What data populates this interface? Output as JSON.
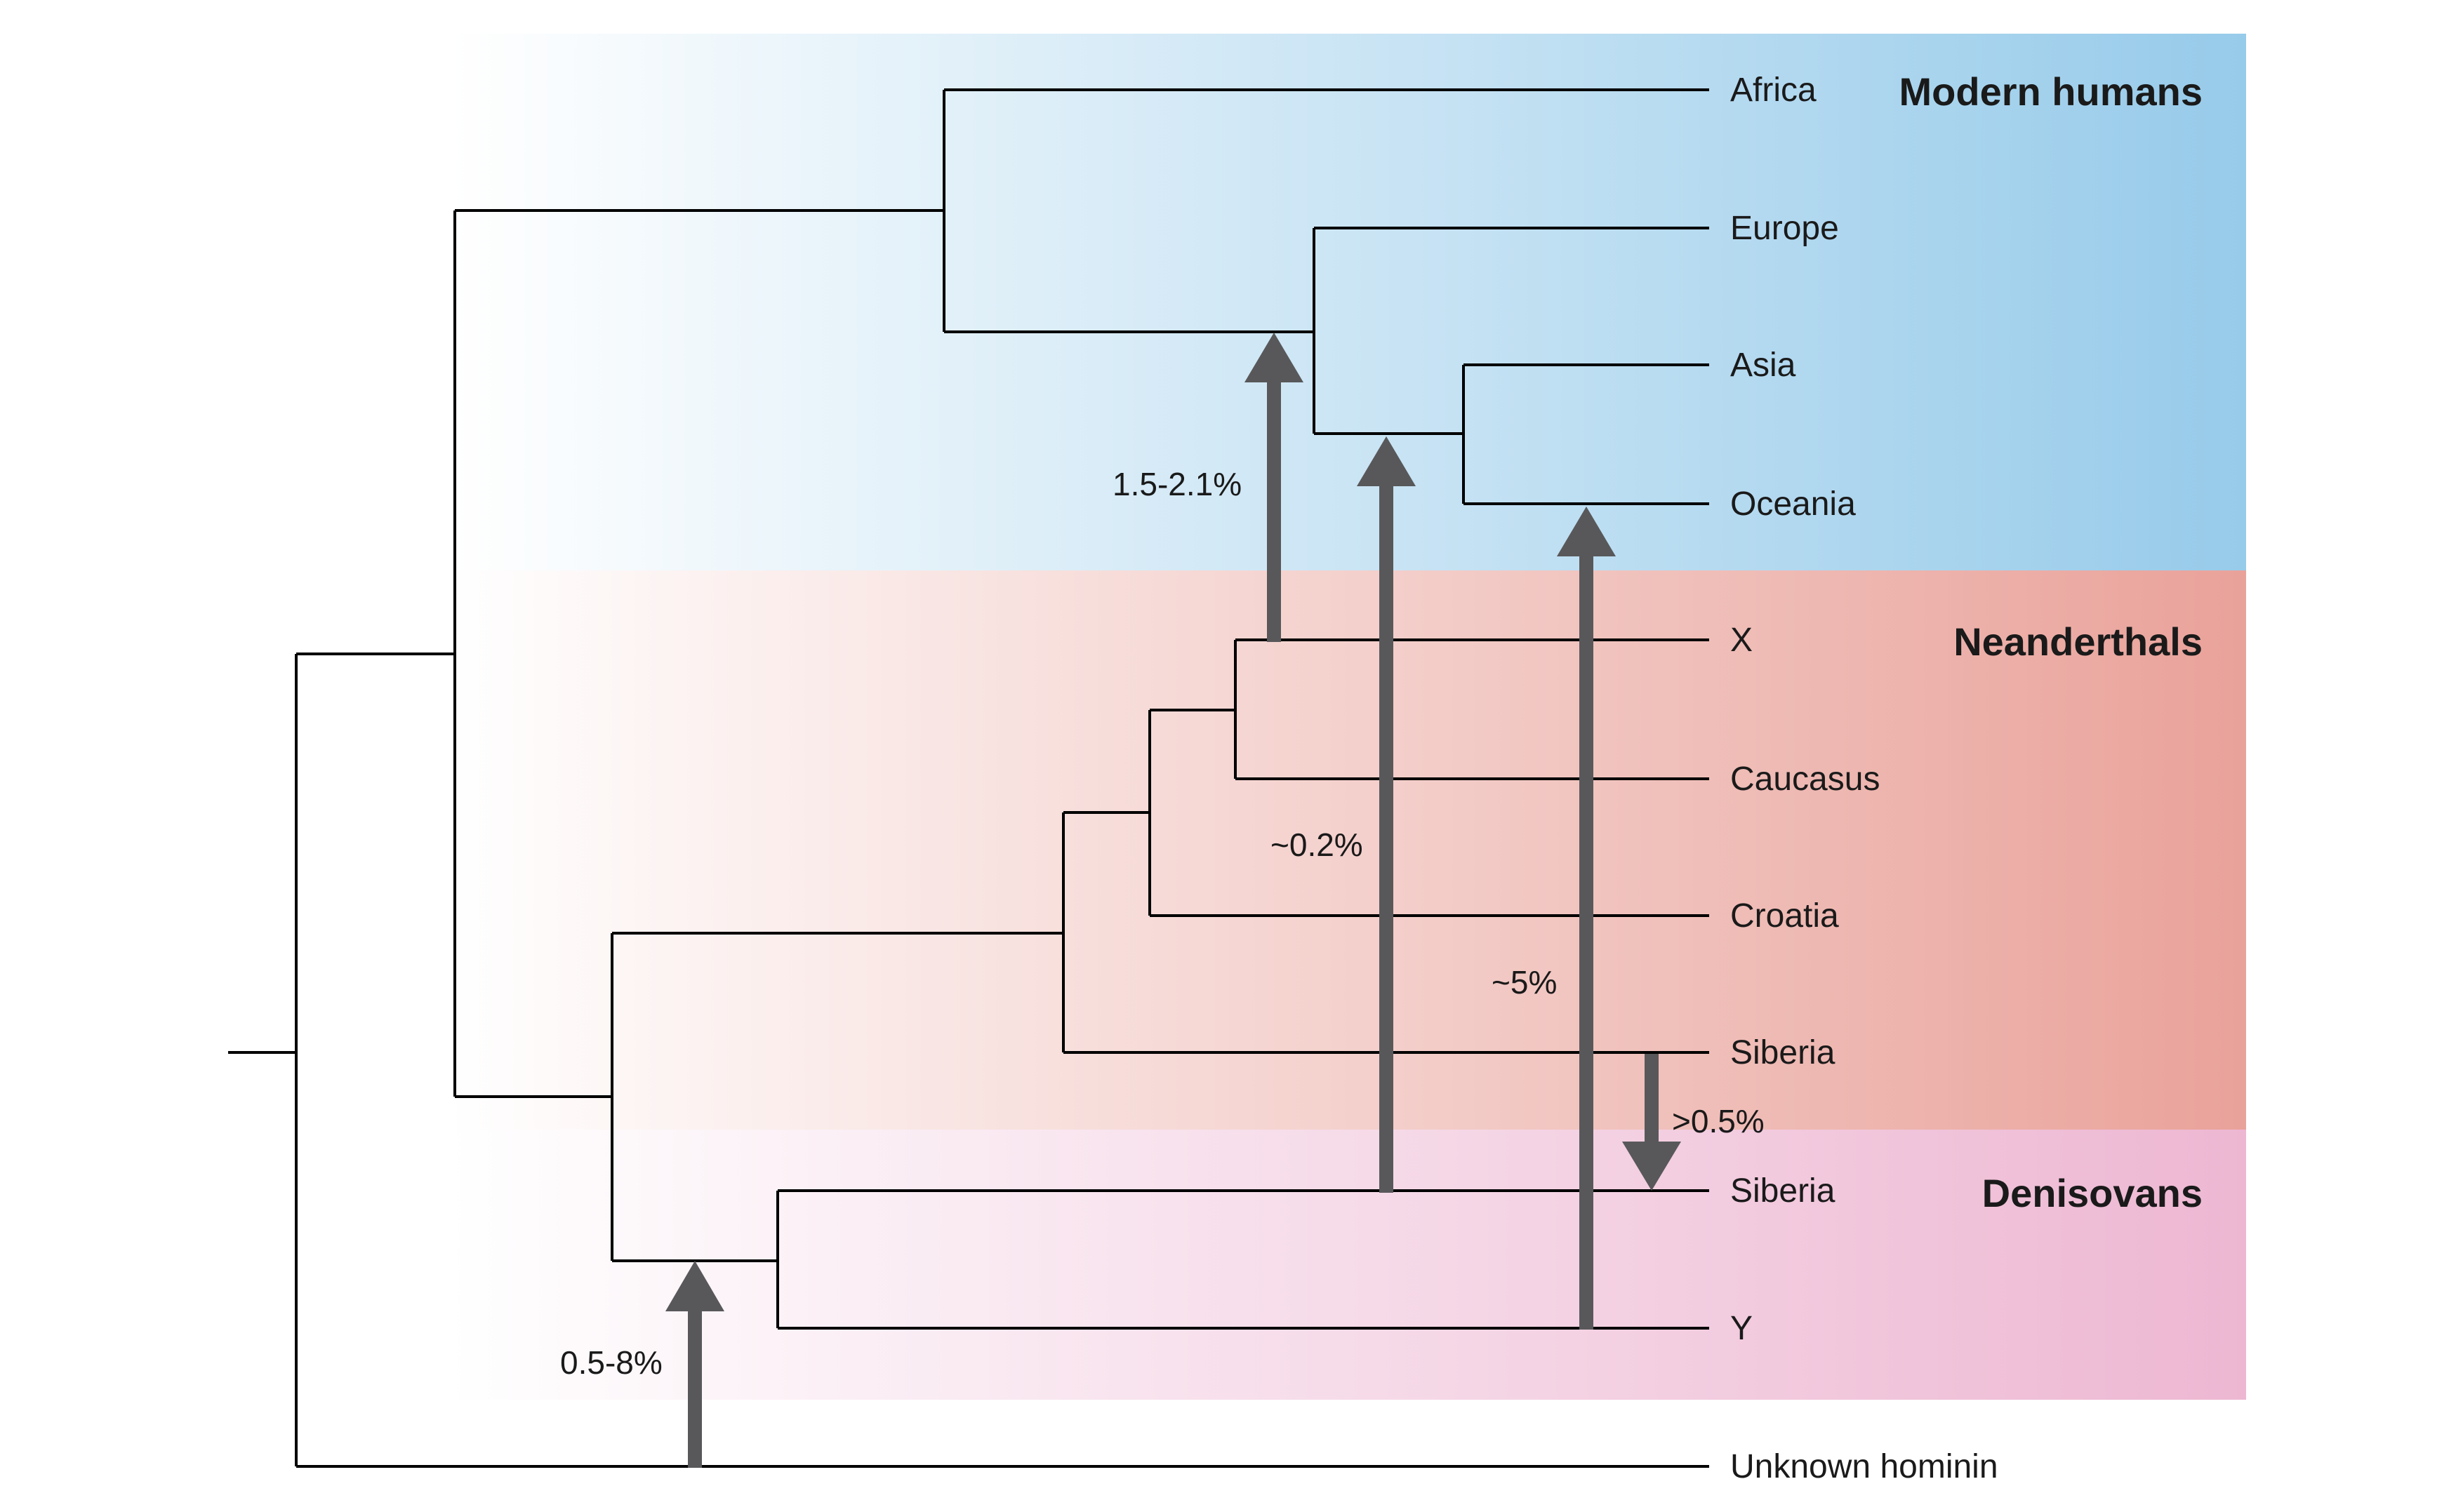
{
  "groups": {
    "modern_humans": "Modern humans",
    "neanderthals": "Neanderthals",
    "denisovans": "Denisovans"
  },
  "leaves": {
    "africa": "Africa",
    "europe": "Europe",
    "asia": "Asia",
    "oceania": "Oceania",
    "x": "X",
    "caucasus": "Caucasus",
    "croatia": "Croatia",
    "siberia_neanderthal": "Siberia",
    "siberia_denisovan": "Siberia",
    "y": "Y",
    "unknown_hominin": "Unknown hominin"
  },
  "gene_flow": {
    "neanderthal_to_humans": "1.5-2.1%",
    "denisovan_to_asia": "~0.2%",
    "y_to_oceania": "~5%",
    "neanderthal_to_denisovan": ">0.5%",
    "unknown_to_denisovan": "0.5-8%"
  },
  "colors": {
    "modern_humans_band": "#97cbea",
    "neanderthals_band": "#e9a29a",
    "denisovans_band": "#edb7d2",
    "arrow": "#58585a",
    "branch": "#000000"
  }
}
